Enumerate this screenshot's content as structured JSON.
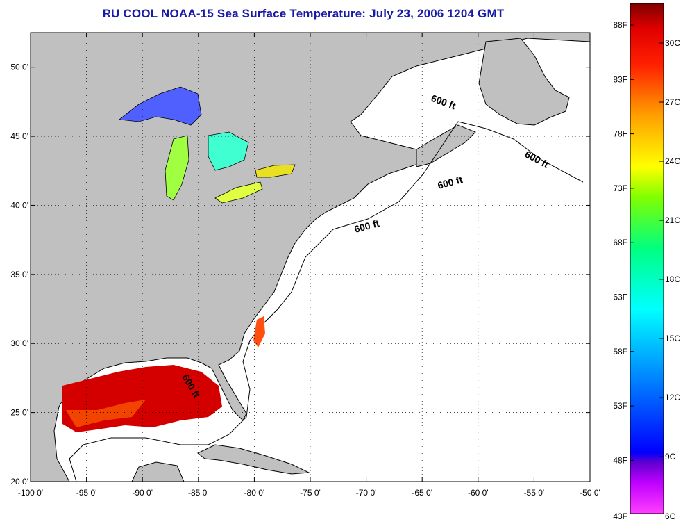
{
  "title": "RU COOL  NOAA-15  Sea Surface Temperature:  July 23, 2006 1204 GMT",
  "map": {
    "lon_range": [
      -100,
      -50
    ],
    "lat_range": [
      20,
      52.5
    ],
    "lon_ticks": [
      "-100 0'",
      "-95 0'",
      "-90 0'",
      "-85 0'",
      "-80 0'",
      "-75 0'",
      "-70 0'",
      "-65 0'",
      "-60 0'",
      "-55 0'",
      "-50 0'"
    ],
    "lat_ticks": [
      "20 0'",
      "25 0'",
      "30 0'",
      "35 0'",
      "40 0'",
      "45 0'",
      "50 0'"
    ],
    "contour_labels": [
      "600 ft",
      "600 ft",
      "600 ft",
      "600 ft",
      "600 ft"
    ],
    "land_color": "#c0c0c0",
    "ocean_color": "#ffffff"
  },
  "colorbar": {
    "fahrenheit_labels": [
      "88F",
      "83F",
      "78F",
      "73F",
      "68F",
      "63F",
      "58F",
      "53F",
      "48F",
      "43F"
    ],
    "celsius_labels": [
      "30C",
      "27C",
      "24C",
      "21C",
      "18C",
      "15C",
      "12C",
      "9C",
      "6C"
    ],
    "gradient": [
      "#ff40ff",
      "#8000c0",
      "#0000ff",
      "#00a0ff",
      "#00ffff",
      "#00ff80",
      "#80ff00",
      "#ffff00",
      "#ffa000",
      "#ff4000",
      "#ff0000",
      "#800000"
    ]
  }
}
